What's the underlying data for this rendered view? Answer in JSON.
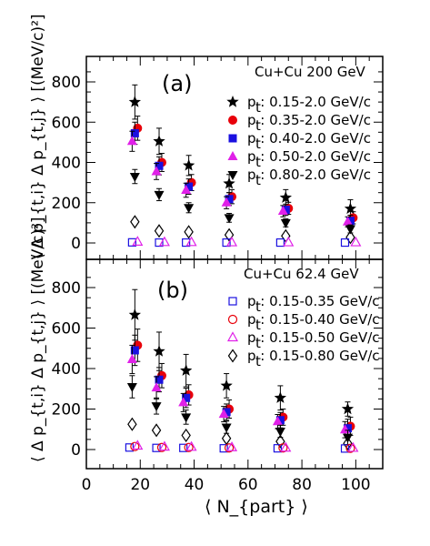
{
  "chart_data": [
    {
      "type": "scatter",
      "panel_tag": "(a)",
      "system_label": "Cu+Cu 200 GeV",
      "ylabel": "⟨ Δ p_{t,i} Δ p_{t,j} ⟩ [(MeV/c)²]",
      "ylim": [
        -60,
        900
      ],
      "yticks": [
        0,
        200,
        400,
        600,
        800
      ],
      "legend_position": "top-right",
      "series": [
        {
          "name": "p_t: 0.15-2.0 GeV/c",
          "marker": "star",
          "color": "#000000",
          "x": [
            18,
            27,
            38,
            53,
            74,
            98
          ],
          "y": [
            700,
            505,
            385,
            295,
            225,
            170
          ],
          "err": [
            85,
            65,
            50,
            45,
            40,
            45
          ]
        },
        {
          "name": "p_t: 0.35-2.0 GeV/c",
          "marker": "circle",
          "color": "#e8000a",
          "x": [
            19,
            28,
            39,
            54,
            75,
            99
          ],
          "y": [
            570,
            400,
            300,
            230,
            172,
            125
          ],
          "err": [
            60,
            45,
            40,
            35,
            30,
            30
          ]
        },
        {
          "name": "p_t: 0.40-2.0 GeV/c",
          "marker": "square",
          "color": "#1a10e0",
          "x": [
            18,
            27,
            38,
            53,
            74,
            98
          ],
          "y": [
            545,
            383,
            280,
            218,
            165,
            110
          ],
          "err": [
            55,
            45,
            38,
            32,
            28,
            28
          ]
        },
        {
          "name": "p_t: 0.50-2.0 GeV/c",
          "marker": "triangle-up",
          "color": "#e020e8",
          "x": [
            17,
            26,
            37,
            52,
            73,
            97
          ],
          "y": [
            505,
            355,
            262,
            200,
            158,
            105
          ],
          "err": [
            50,
            40,
            35,
            30,
            28,
            25
          ]
        },
        {
          "name": "p_t: 0.80-2.0 GeV/c",
          "marker": "triangle-down",
          "color": "#000000",
          "x": [
            18,
            27,
            38,
            53,
            74,
            98
          ],
          "y": [
            330,
            240,
            175,
            125,
            100,
            70
          ],
          "err": [
            35,
            30,
            25,
            22,
            20,
            20
          ]
        },
        {
          "name": "",
          "marker": "open-diamond",
          "color": "#000000",
          "x": [
            18,
            27,
            38,
            53,
            74,
            98
          ],
          "y": [
            105,
            60,
            55,
            40,
            35,
            28
          ],
          "err": [
            0,
            0,
            0,
            0,
            0,
            0
          ]
        },
        {
          "name": "",
          "marker": "open-square",
          "color": "#1a10e0",
          "x": [
            17,
            27,
            37,
            52,
            72,
            96
          ],
          "y": [
            3,
            2,
            2,
            2,
            2,
            2
          ],
          "err": [
            0,
            0,
            0,
            0,
            0,
            0
          ]
        },
        {
          "name": "",
          "marker": "open-triangle",
          "color": "#e020e8",
          "x": [
            19,
            29,
            39,
            54,
            75,
            100
          ],
          "y": [
            5,
            3,
            3,
            2,
            2,
            2
          ],
          "err": [
            0,
            0,
            0,
            0,
            0,
            0
          ]
        }
      ]
    },
    {
      "type": "scatter",
      "panel_tag": "(b)",
      "system_label": "Cu+Cu 62.4 GeV",
      "ylabel": "⟨ Δ p_{t,i} Δ p_{t,j} ⟩ [(MeV/c)²]",
      "xlabel": "⟨ N_{part} ⟩",
      "xlim": [
        0,
        110
      ],
      "xticks": [
        0,
        20,
        40,
        60,
        80,
        100
      ],
      "ylim": [
        -60,
        900
      ],
      "yticks": [
        0,
        200,
        400,
        600,
        800
      ],
      "legend_position": "top-right",
      "series": [
        {
          "name": "",
          "marker": "star",
          "color": "#000000",
          "x": [
            18,
            27,
            37,
            52,
            72,
            97
          ],
          "y": [
            665,
            485,
            390,
            315,
            255,
            200
          ],
          "err": [
            125,
            95,
            80,
            60,
            60,
            35
          ]
        },
        {
          "name": "",
          "marker": "circle",
          "color": "#e8000a",
          "x": [
            19,
            28,
            38,
            53,
            73,
            98
          ],
          "y": [
            515,
            365,
            270,
            200,
            160,
            115
          ],
          "err": [
            80,
            60,
            50,
            45,
            40,
            45
          ]
        },
        {
          "name": "",
          "marker": "square",
          "color": "#1a10e0",
          "x": [
            18,
            27,
            37,
            52,
            72,
            97
          ],
          "y": [
            490,
            345,
            255,
            185,
            145,
            105
          ],
          "err": [
            75,
            60,
            48,
            40,
            38,
            45
          ]
        },
        {
          "name": "",
          "marker": "triangle-up",
          "color": "#e020e8",
          "x": [
            17,
            26,
            36,
            51,
            71,
            96
          ],
          "y": [
            445,
            305,
            232,
            175,
            138,
            98
          ],
          "err": [
            70,
            55,
            45,
            38,
            35,
            40
          ]
        },
        {
          "name": "",
          "marker": "triangle-down",
          "color": "#000000",
          "x": [
            17,
            26,
            37,
            52,
            72,
            97
          ],
          "y": [
            310,
            215,
            160,
            110,
            90,
            60
          ],
          "err": [
            55,
            40,
            35,
            30,
            30,
            35
          ]
        },
        {
          "name": "p_t: 0.15-0.80 GeV/c",
          "marker": "open-diamond",
          "color": "#000000",
          "x": [
            17,
            26,
            37,
            52,
            72,
            97
          ],
          "y": [
            125,
            95,
            70,
            55,
            40,
            30
          ],
          "err": [
            0,
            0,
            0,
            0,
            0,
            0
          ]
        },
        {
          "name": "p_t: 0.15-0.35 GeV/c",
          "marker": "open-square",
          "color": "#1a10e0",
          "x": [
            16,
            26,
            36,
            51,
            71,
            96
          ],
          "y": [
            10,
            8,
            8,
            6,
            6,
            5
          ],
          "err": [
            0,
            0,
            0,
            0,
            0,
            0
          ]
        },
        {
          "name": "p_t: 0.15-0.40 GeV/c",
          "marker": "open-circle",
          "color": "#e8000a",
          "x": [
            18,
            28,
            38,
            53,
            73,
            98
          ],
          "y": [
            15,
            10,
            10,
            8,
            8,
            6
          ],
          "err": [
            0,
            0,
            0,
            0,
            0,
            0
          ]
        },
        {
          "name": "p_t: 0.15-0.50 GeV/c",
          "marker": "open-triangle",
          "color": "#e020e8",
          "x": [
            19,
            29,
            39,
            54,
            74,
            99
          ],
          "y": [
            18,
            13,
            12,
            10,
            8,
            7
          ],
          "err": [
            0,
            0,
            0,
            0,
            0,
            0
          ]
        }
      ]
    }
  ],
  "legend_a": [
    {
      "marker": "star",
      "color": "#000000",
      "label": "p : 0.15-2.0 GeV/c"
    },
    {
      "marker": "circle",
      "color": "#e8000a",
      "label": "p : 0.35-2.0 GeV/c"
    },
    {
      "marker": "square",
      "color": "#1a10e0",
      "label": "p : 0.40-2.0 GeV/c"
    },
    {
      "marker": "triangle-up",
      "color": "#e020e8",
      "label": "p : 0.50-2.0 GeV/c"
    },
    {
      "marker": "triangle-down",
      "color": "#000000",
      "label": "p : 0.80-2.0 GeV/c"
    }
  ],
  "legend_b": [
    {
      "marker": "open-square",
      "color": "#1a10e0",
      "label": "p : 0.15-0.35 GeV/c"
    },
    {
      "marker": "open-circle",
      "color": "#e8000a",
      "label": "p : 0.15-0.40 GeV/c"
    },
    {
      "marker": "open-triangle",
      "color": "#e020e8",
      "label": "p : 0.15-0.50 GeV/c"
    },
    {
      "marker": "open-diamond",
      "color": "#000000",
      "label": "p : 0.15-0.80 GeV/c"
    }
  ]
}
